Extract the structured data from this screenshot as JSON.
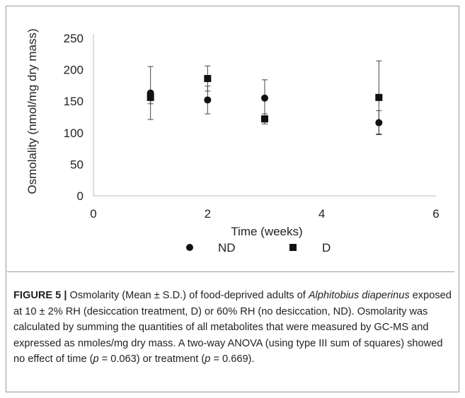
{
  "chart_data": {
    "type": "scatter",
    "title": "",
    "xlabel": "Time (weeks)",
    "ylabel": "Osmolality (nmol/mg dry mass)",
    "xlim": [
      0,
      6
    ],
    "ylim": [
      0,
      250
    ],
    "x_ticks": [
      0,
      2,
      4,
      6
    ],
    "y_ticks": [
      0,
      50,
      100,
      150,
      200,
      250
    ],
    "grid": false,
    "legend_position": "bottom",
    "series": [
      {
        "name": "ND",
        "marker": "circle",
        "color": "#111111",
        "points": [
          {
            "x": 1,
            "y": 163,
            "sd": 42
          },
          {
            "x": 2,
            "y": 152,
            "sd": 22
          },
          {
            "x": 3,
            "y": 155,
            "sd": 29
          },
          {
            "x": 5,
            "y": 116,
            "sd": 19
          }
        ]
      },
      {
        "name": "D",
        "marker": "square",
        "color": "#111111",
        "points": [
          {
            "x": 1,
            "y": 156,
            "sd": 10
          },
          {
            "x": 2,
            "y": 186,
            "sd": 20
          },
          {
            "x": 3,
            "y": 122,
            "sd": 8
          },
          {
            "x": 5,
            "y": 156,
            "sd": 58
          }
        ]
      }
    ]
  },
  "caption": {
    "label": "FIGURE 5 |",
    "parts": [
      {
        "t": " Osmolarity (Mean ± S.D.) of food-deprived adults of ",
        "i": false
      },
      {
        "t": "Alphitobius diaperinus",
        "i": true
      },
      {
        "t": " exposed at 10 ± 2% RH (desiccation treatment, D) or 60% RH (no desiccation, ND). Osmolarity was calculated by summing the quantities of all metabolites that were measured by GC-MS and expressed as nmoles/mg dry mass. A two-way ANOVA (using type III sum of squares) showed no effect of time (",
        "i": false
      },
      {
        "t": "p",
        "i": true
      },
      {
        "t": " = 0.063) or treatment (",
        "i": false
      },
      {
        "t": "p",
        "i": true
      },
      {
        "t": " = 0.669).",
        "i": false
      }
    ]
  }
}
